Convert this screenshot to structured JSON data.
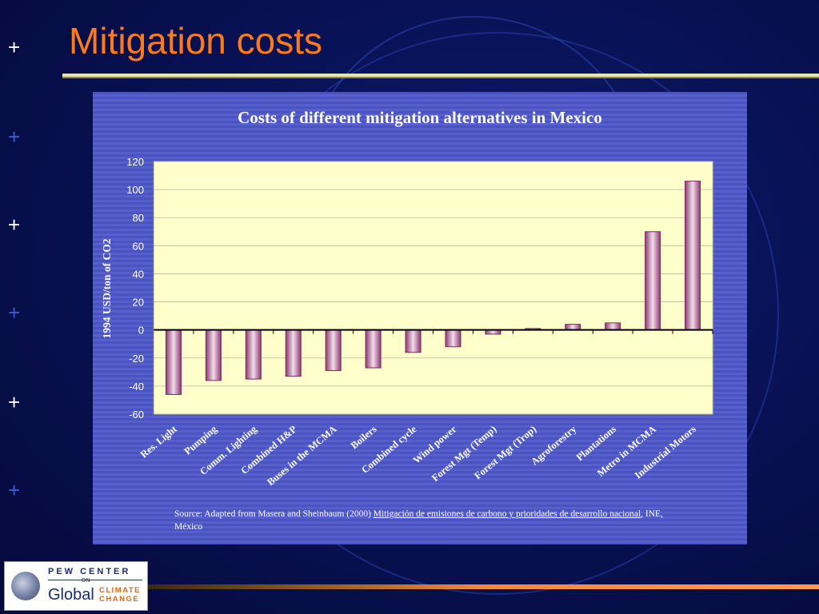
{
  "slide": {
    "title": "Mitigation costs",
    "plus_symbol": "+"
  },
  "source": {
    "prefix": "Source: Adapted from Masera and Sheinbaum (2000) ",
    "title_link": "Mitigación de emisiones de carbono y prioridades de desarrollo nacional",
    "suffix": ", INE, México"
  },
  "logo": {
    "top": "PEW CENTER",
    "on": "ON",
    "global": "Global",
    "climate_line1": "CLIMATE",
    "climate_line2": "CHANGE"
  },
  "chart_data": {
    "type": "bar",
    "title": "Costs of different mitigation alternatives in Mexico",
    "xlabel": "",
    "ylabel": "1994 USD/ton of CO2",
    "ylim": [
      -60,
      120
    ],
    "yticks": [
      120,
      100,
      80,
      60,
      40,
      20,
      0,
      -20,
      -40,
      -60
    ],
    "grid": true,
    "categories": [
      "Res. Light",
      "Pumping",
      "Comm. Lighting",
      "Combined H&P",
      "Buses in the MCMA",
      "Boilers",
      "Combined cycle",
      "Wind power",
      "Forest Mgt (Temp)",
      "Forest Mgt (Trop)",
      "Agroforestry",
      "Plantations",
      "Metro in MCMA",
      "Industrial Motors"
    ],
    "values": [
      -46,
      -36,
      -35,
      -33,
      -29,
      -27,
      -16,
      -12,
      -3,
      1,
      4,
      5,
      70,
      106
    ],
    "colors": {
      "plot_bg": "#ffffcc",
      "bar_edge": "#7a2a5a",
      "bar_dark": "#8e3a72",
      "bar_light": "#f2dcea"
    }
  }
}
